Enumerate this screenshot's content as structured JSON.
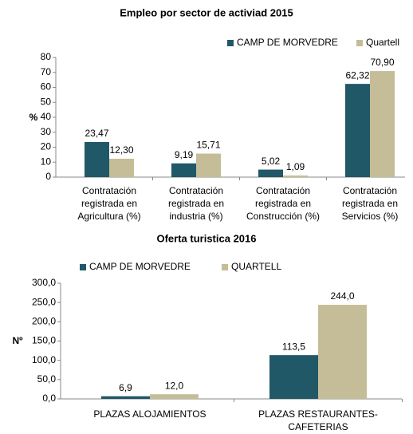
{
  "chart_data": [
    {
      "type": "bar",
      "title": "Empleo por sector de activiad 2015",
      "y_label": "%",
      "categories": [
        "Contratación\nregistrada en\nAgricultura  (%)",
        "Contratación\nregistrada en\nindustria  (%)",
        "Contratación\nregistrada en\nConstrucción  (%)",
        "Contratación\nregistrada en\nServicios  (%)"
      ],
      "series": [
        {
          "name": "CAMP DE MORVEDRE",
          "color": "#215868",
          "values": [
            23.47,
            9.19,
            5.02,
            62.32
          ],
          "value_labels": [
            "23,47",
            "9,19",
            "5,02",
            "62,32"
          ]
        },
        {
          "name": "Quartell",
          "color": "#c4bd97",
          "values": [
            12.3,
            15.71,
            1.09,
            70.9
          ],
          "value_labels": [
            "12,30",
            "15,71",
            "1,09",
            "70,90"
          ]
        }
      ],
      "ylim": [
        0,
        80
      ],
      "yticks": [
        0,
        10,
        20,
        30,
        40,
        50,
        60,
        70,
        80
      ],
      "grid": false,
      "legend": "top-right"
    },
    {
      "type": "bar",
      "title": "Oferta turistica 2016",
      "y_label": "Nº",
      "categories": [
        "PLAZAS ALOJAMIENTOS",
        "PLAZAS RESTAURANTES-\nCAFETERIAS"
      ],
      "series": [
        {
          "name": "CAMP DE MORVEDRE",
          "color": "#215868",
          "values": [
            6.9,
            113.5
          ],
          "value_labels": [
            "6,9",
            "113,5"
          ]
        },
        {
          "name": "QUARTELL",
          "color": "#c4bd97",
          "values": [
            12.0,
            244.0
          ],
          "value_labels": [
            "12,0",
            "244,0"
          ]
        }
      ],
      "ylim": [
        0,
        300
      ],
      "yticks": [
        {
          "value": 0,
          "label": "0,0"
        },
        {
          "value": 50,
          "label": "50,0"
        },
        {
          "value": 100,
          "label": "100,0"
        },
        {
          "value": 150,
          "label": "150,0"
        },
        {
          "value": 200,
          "label": "200,0"
        },
        {
          "value": 250,
          "label": "250,0"
        },
        {
          "value": 300,
          "label": "300,0"
        }
      ],
      "grid": false,
      "legend": "top-left"
    }
  ]
}
